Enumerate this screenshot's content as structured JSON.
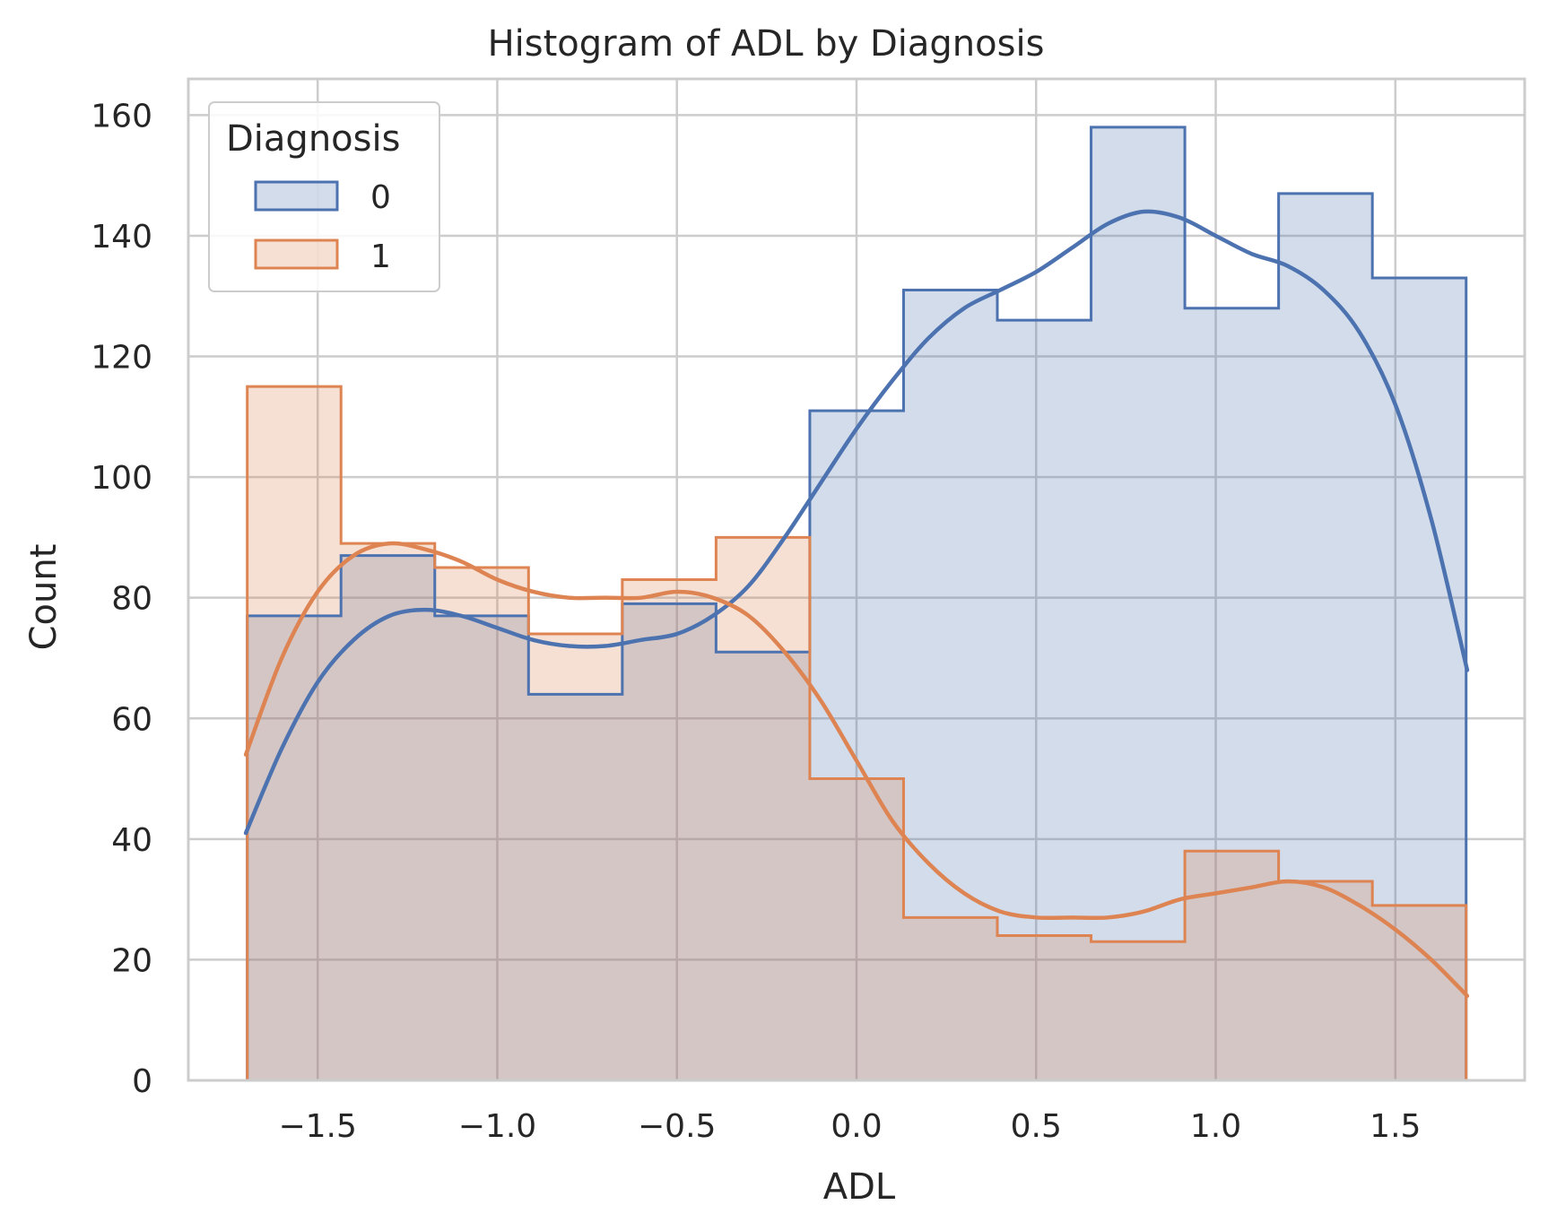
{
  "chart_data": {
    "type": "histogram",
    "title": "Histogram of ADL by Diagnosis",
    "xlabel": "ADL",
    "ylabel": "Count",
    "xlim": [
      -1.86,
      1.86
    ],
    "ylim": [
      0,
      166
    ],
    "grid": true,
    "legend": {
      "title": "Diagnosis",
      "position": "top-left"
    },
    "x_ticks": [
      -1.5,
      -1.0,
      -0.5,
      0.0,
      0.5,
      1.0,
      1.5
    ],
    "x_tick_labels": [
      "−1.5",
      "−1.0",
      "−0.5",
      "0.0",
      "0.5",
      "1.0",
      "1.5"
    ],
    "y_ticks": [
      0,
      20,
      40,
      60,
      80,
      100,
      120,
      140,
      160
    ],
    "y_tick_labels": [
      "0",
      "20",
      "40",
      "60",
      "80",
      "100",
      "120",
      "140",
      "160"
    ],
    "bin_edges": [
      -1.696,
      -1.435,
      -1.174,
      -0.913,
      -0.652,
      -0.391,
      -0.13,
      0.131,
      0.392,
      0.653,
      0.914,
      1.175,
      1.436,
      1.697
    ],
    "series": [
      {
        "name": "0",
        "color": "#4c72b0",
        "counts": [
          77,
          87,
          77,
          64,
          79,
          71,
          111,
          131,
          126,
          158,
          128,
          147,
          133
        ],
        "kde": {
          "x": [
            -1.7,
            -1.6,
            -1.5,
            -1.4,
            -1.3,
            -1.2,
            -1.1,
            -1.0,
            -0.9,
            -0.8,
            -0.7,
            -0.6,
            -0.5,
            -0.4,
            -0.3,
            -0.2,
            -0.1,
            0.0,
            0.1,
            0.2,
            0.3,
            0.4,
            0.5,
            0.6,
            0.7,
            0.8,
            0.9,
            1.0,
            1.1,
            1.2,
            1.3,
            1.4,
            1.5,
            1.6,
            1.7
          ],
          "y": [
            41,
            55,
            66,
            73,
            77,
            78,
            77,
            75,
            73,
            72,
            72,
            73,
            74,
            77,
            82,
            90,
            99,
            108,
            116,
            123,
            128,
            131,
            134,
            138,
            142,
            144,
            143,
            140,
            137,
            135,
            131,
            124,
            112,
            93,
            68
          ]
        }
      },
      {
        "name": "1",
        "color": "#dd8452",
        "counts": [
          115,
          89,
          85,
          74,
          83,
          90,
          50,
          27,
          24,
          23,
          38,
          33,
          29
        ],
        "kde": {
          "x": [
            -1.7,
            -1.6,
            -1.5,
            -1.4,
            -1.3,
            -1.2,
            -1.1,
            -1.0,
            -0.9,
            -0.8,
            -0.7,
            -0.6,
            -0.5,
            -0.4,
            -0.3,
            -0.2,
            -0.1,
            0.0,
            0.1,
            0.2,
            0.3,
            0.4,
            0.5,
            0.6,
            0.7,
            0.8,
            0.9,
            1.0,
            1.1,
            1.2,
            1.3,
            1.4,
            1.5,
            1.6,
            1.7
          ],
          "y": [
            54,
            70,
            81,
            87,
            89,
            88,
            86,
            83,
            81,
            80,
            80,
            80,
            81,
            80,
            77,
            71,
            63,
            53,
            43,
            36,
            31,
            28,
            27,
            27,
            27,
            28,
            30,
            31,
            32,
            33,
            32,
            29,
            25,
            20,
            14
          ]
        }
      }
    ]
  }
}
